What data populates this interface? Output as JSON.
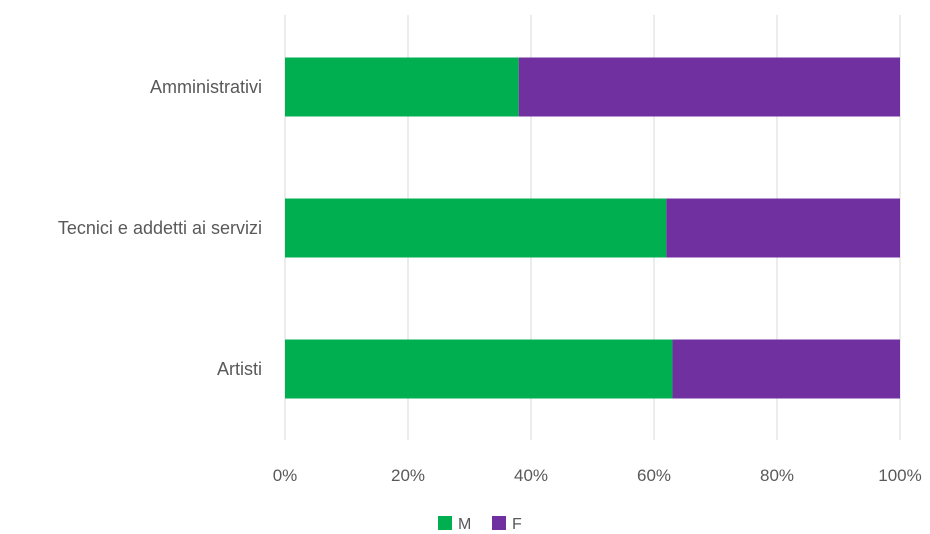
{
  "chart_data": {
    "type": "bar",
    "orientation": "horizontal",
    "stacked": "percent",
    "categories": [
      "Amministrativi",
      "Tecnici e addetti ai servizi",
      "Artisti"
    ],
    "series": [
      {
        "name": "M",
        "color": "#00b050",
        "values": [
          38,
          62,
          63
        ]
      },
      {
        "name": "F",
        "color": "#7030a0",
        "values": [
          62,
          38,
          37
        ]
      }
    ],
    "x_ticks": [
      "0%",
      "20%",
      "40%",
      "60%",
      "80%",
      "100%"
    ],
    "xlim": [
      0,
      100
    ],
    "grid": true,
    "legend_position": "bottom"
  }
}
